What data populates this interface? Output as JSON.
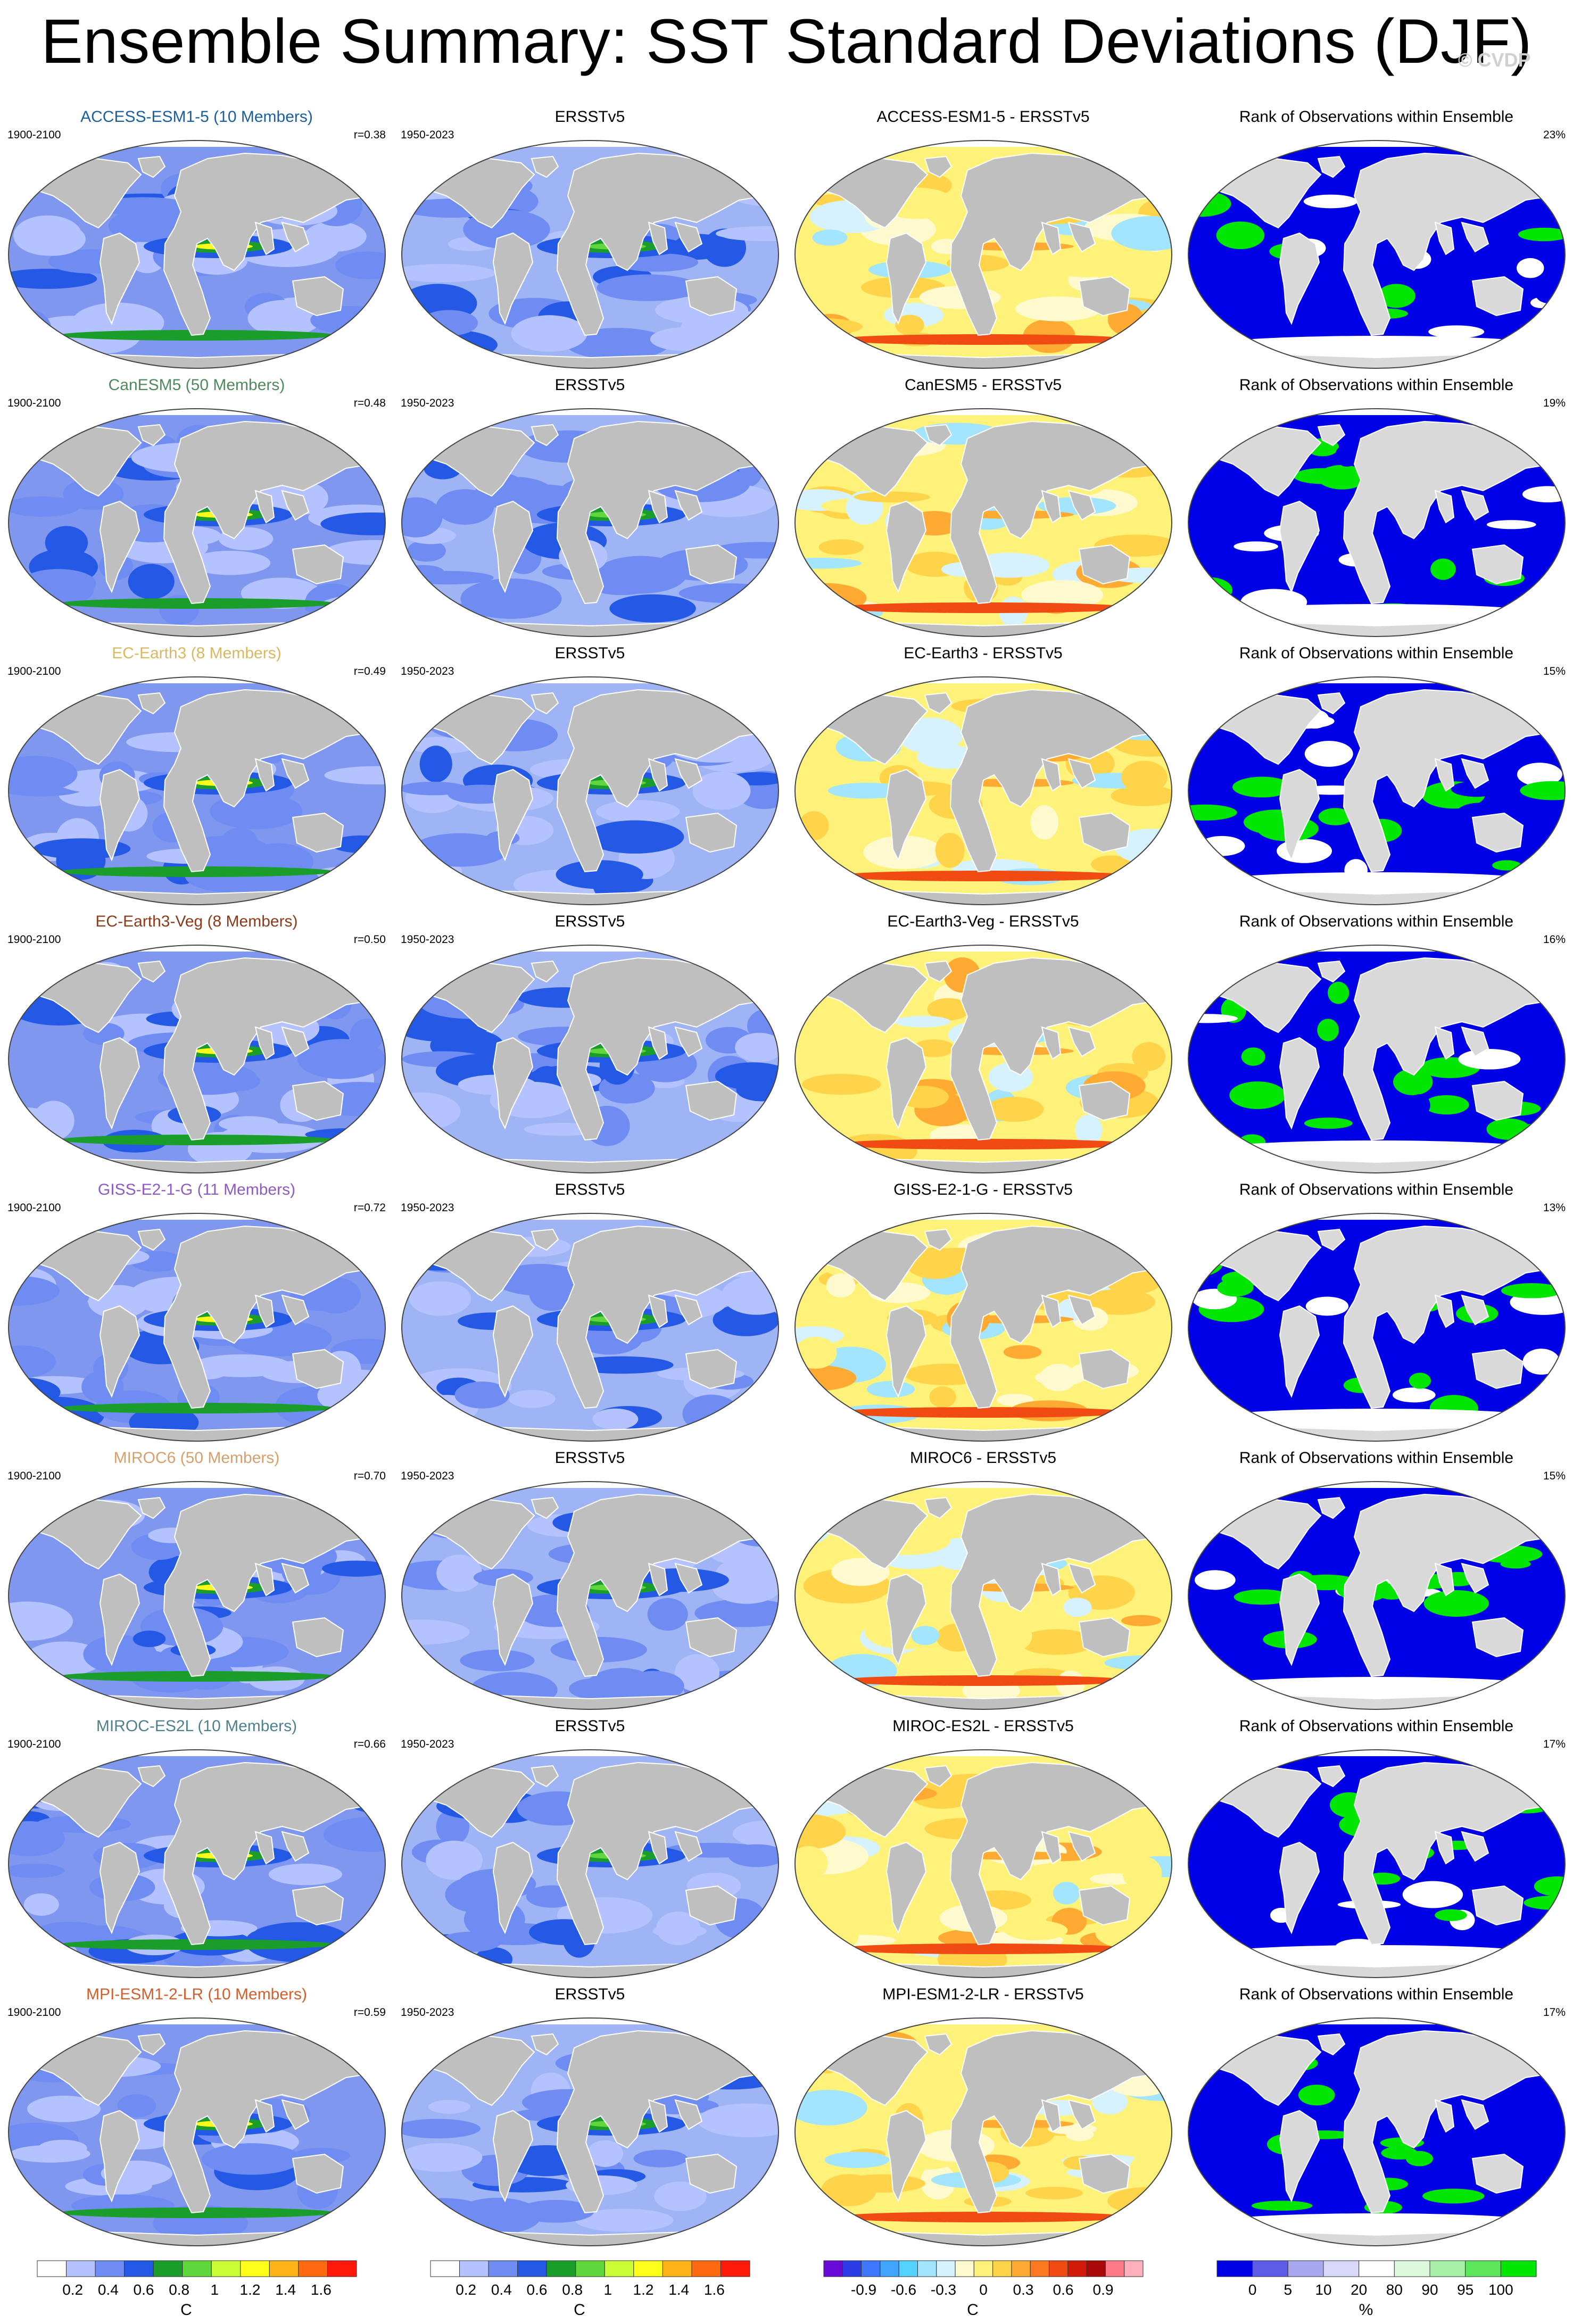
{
  "title": "Ensemble Summary: SST Standard Deviations (DJF)",
  "credit": "© CVDP",
  "rows": [
    {
      "model": "ACCESS-ESM1-5",
      "members": "ACCESS-ESM1-5 (10 Members)",
      "model_period": "1900-2100",
      "r": "r=0.38",
      "obs_period": "1950-2023",
      "obs_title": "ERSSTv5",
      "diff_title": "ACCESS-ESM1-5 - ERSSTv5",
      "rank_title": "Rank of Observations within Ensemble",
      "rank_pct": "23%",
      "color": "#1a5fa0"
    },
    {
      "model": "CanESM5",
      "members": "CanESM5 (50 Members)",
      "model_period": "1900-2100",
      "r": "r=0.48",
      "obs_period": "1950-2023",
      "obs_title": "ERSSTv5",
      "diff_title": "CanESM5 - ERSSTv5",
      "rank_title": "Rank of Observations within Ensemble",
      "rank_pct": "19%",
      "color": "#4f8a5e"
    },
    {
      "model": "EC-Earth3",
      "members": "EC-Earth3 (8 Members)",
      "model_period": "1900-2100",
      "r": "r=0.49",
      "obs_period": "1950-2023",
      "obs_title": "ERSSTv5",
      "diff_title": "EC-Earth3 - ERSSTv5",
      "rank_title": "Rank of Observations within Ensemble",
      "rank_pct": "15%",
      "color": "#d8b861"
    },
    {
      "model": "EC-Earth3-Veg",
      "members": "EC-Earth3-Veg (8 Members)",
      "model_period": "1900-2100",
      "r": "r=0.50",
      "obs_period": "1950-2023",
      "obs_title": "ERSSTv5",
      "diff_title": "EC-Earth3-Veg - ERSSTv5",
      "rank_title": "Rank of Observations within Ensemble",
      "rank_pct": "16%",
      "color": "#8b3a1a"
    },
    {
      "model": "GISS-E2-1-G",
      "members": "GISS-E2-1-G (11 Members)",
      "model_period": "1900-2100",
      "r": "r=0.72",
      "obs_period": "1950-2023",
      "obs_title": "ERSSTv5",
      "diff_title": "GISS-E2-1-G - ERSSTv5",
      "rank_title": "Rank of Observations within Ensemble",
      "rank_pct": "13%",
      "color": "#8e5bc6"
    },
    {
      "model": "MIROC6",
      "members": "MIROC6 (50 Members)",
      "model_period": "1900-2100",
      "r": "r=0.70",
      "obs_period": "1950-2023",
      "obs_title": "ERSSTv5",
      "diff_title": "MIROC6 - ERSSTv5",
      "rank_title": "Rank of Observations within Ensemble",
      "rank_pct": "15%",
      "color": "#d79f6a"
    },
    {
      "model": "MIROC-ES2L",
      "members": "MIROC-ES2L (10 Members)",
      "model_period": "1900-2100",
      "r": "r=0.66",
      "obs_period": "1950-2023",
      "obs_title": "ERSSTv5",
      "diff_title": "MIROC-ES2L - ERSSTv5",
      "rank_title": "Rank of Observations within Ensemble",
      "rank_pct": "17%",
      "color": "#4f8090"
    },
    {
      "model": "MPI-ESM1-2-LR",
      "members": "MPI-ESM1-2-LR (10 Members)",
      "model_period": "1900-2100",
      "r": "r=0.59",
      "obs_period": "1950-2023",
      "obs_title": "ERSSTv5",
      "diff_title": "MPI-ESM1-2-LR - ERSSTv5",
      "rank_title": "Rank of Observations within Ensemble",
      "rank_pct": "17%",
      "color": "#d0602f"
    }
  ],
  "colorbars": {
    "stddev": {
      "unit": "C",
      "labels": [
        "0.2",
        "0.4",
        "0.6",
        "0.8",
        "1",
        "1.2",
        "1.4",
        "1.6"
      ],
      "colors": [
        "#ffffff",
        "#b4c3ff",
        "#6f8cf2",
        "#2459e6",
        "#1a9d2b",
        "#5fd63a",
        "#ccff33",
        "#ffff1a",
        "#ffb319",
        "#ff6a10",
        "#ff1a0a"
      ]
    },
    "diff": {
      "unit": "C",
      "labels": [
        "-0.9",
        "-0.6",
        "-0.3",
        "0",
        "0.3",
        "0.6",
        "0.9"
      ],
      "colors": [
        "#6a0ad8",
        "#2a3ce6",
        "#3f77ff",
        "#3fa5ff",
        "#55d1ff",
        "#a3e5ff",
        "#d6f2ff",
        "#fffacd",
        "#fff27a",
        "#ffd44a",
        "#ffaa33",
        "#ff7a1f",
        "#f04b12",
        "#d01a0a",
        "#a80a0a",
        "#ff7a88",
        "#ffb0ba"
      ]
    },
    "rank": {
      "unit": "%",
      "labels": [
        "0",
        "5",
        "10",
        "20",
        "80",
        "90",
        "95",
        "100"
      ],
      "colors": [
        "#0000e6",
        "#5c5ce6",
        "#a8a8f0",
        "#d8d8f8",
        "#ffffff",
        "#dcf8dc",
        "#a8f0a8",
        "#5ce65c",
        "#00e600"
      ]
    }
  }
}
